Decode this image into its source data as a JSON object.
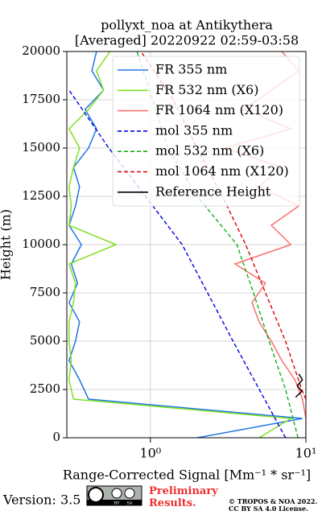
{
  "chart_data": {
    "type": "line",
    "title": "pollyxt_noa at Antikythera",
    "subtitle": "[Averaged] 20220922 02:59-03:58",
    "xlabel": "Range-Corrected Signal [Mm⁻¹ * sr⁻¹]",
    "ylabel": "Height (m)",
    "xscale": "log",
    "xlim": [
      0.29,
      10
    ],
    "xticks": [
      {
        "value": 1,
        "label": "10⁰"
      },
      {
        "value": 10,
        "label": "10¹"
      }
    ],
    "ylim": [
      0,
      20000
    ],
    "yticks": [
      0,
      2500,
      5000,
      7500,
      10000,
      12500,
      15000,
      17500,
      20000
    ],
    "grid": true,
    "legend": "upper right",
    "series": [
      {
        "name": "FR 355 nm",
        "color": "#1f77e4",
        "dash": false,
        "y": [
          0,
          1000,
          2000,
          3000,
          4000,
          5000,
          6000,
          7000,
          8000,
          9000,
          10000,
          11000,
          12000,
          13000,
          14000,
          15000,
          16000,
          17000,
          18000,
          19000,
          20000
        ],
        "values": [
          2,
          9.5,
          0.4,
          0.35,
          0.3,
          0.33,
          0.35,
          0.3,
          0.34,
          0.31,
          0.36,
          0.3,
          0.33,
          0.35,
          0.32,
          0.4,
          0.45,
          0.38,
          0.5,
          0.42,
          0.45
        ]
      },
      {
        "name": "FR 532 nm (X6)",
        "color": "#80e020",
        "dash": false,
        "y": [
          0,
          1000,
          2000,
          3000,
          4000,
          5000,
          6000,
          7000,
          8000,
          9000,
          10000,
          11000,
          12000,
          13000,
          14000,
          15000,
          16000,
          17000,
          18000,
          19000,
          20000
        ],
        "values": [
          5,
          8,
          0.32,
          0.3,
          0.31,
          0.3,
          0.3,
          0.32,
          0.33,
          0.3,
          0.6,
          0.3,
          0.31,
          0.3,
          0.32,
          0.35,
          0.3,
          0.4,
          0.5,
          0.45,
          0.55
        ]
      },
      {
        "name": "FR 1064 nm (X120)",
        "color": "#f87070",
        "dash": false,
        "y": [
          0,
          1000,
          2000,
          3000,
          4000,
          5000,
          6000,
          7000,
          8000,
          9000,
          10000,
          11000,
          12000,
          13000,
          14000,
          15000,
          16000,
          17000,
          18000,
          19000,
          20000
        ],
        "values": [
          10,
          10,
          9.5,
          8.5,
          7,
          6,
          5,
          4.5,
          5.5,
          3.5,
          8,
          6,
          9,
          5,
          7,
          3,
          8,
          4,
          6,
          9,
          7
        ]
      },
      {
        "name": "mol 355 nm",
        "color": "#0000dd",
        "dash": true,
        "y": [
          0,
          5000,
          10000,
          15000,
          18000
        ],
        "values": [
          7.4,
          3.4,
          1.6,
          0.54,
          0.3
        ]
      },
      {
        "name": "mol 532 nm (X6)",
        "color": "#10b010",
        "dash": true,
        "y": [
          0,
          2500,
          5000,
          7500,
          10000,
          12500,
          15000,
          20000
        ],
        "values": [
          8.9,
          7.4,
          5.8,
          4.6,
          3.6,
          2.0,
          1.3,
          0.82
        ]
      },
      {
        "name": "mol 1064 nm (X120)",
        "color": "#dd0000",
        "dash": true,
        "y": [
          2000,
          2500,
          5000,
          7500,
          10000,
          12500,
          15000,
          17500,
          20000
        ],
        "values": [
          10,
          9.4,
          7.4,
          5.5,
          4.1,
          2.9,
          2.0,
          1.4,
          0.87
        ]
      },
      {
        "name": "Reference Height",
        "color": "#000000",
        "dash": false,
        "y": [
          2100,
          2400,
          2700,
          3000,
          3300
        ],
        "values": [
          8.6,
          9.4,
          8.8,
          9.5,
          9.0
        ]
      }
    ]
  },
  "footer": {
    "version": "Version: 3.5",
    "badge": [
      "BY",
      "SA"
    ],
    "status": "Preliminary Results.",
    "copyright": "© TROPOS & NOA 2022.",
    "license": "CC BY SA 4.0 License."
  }
}
